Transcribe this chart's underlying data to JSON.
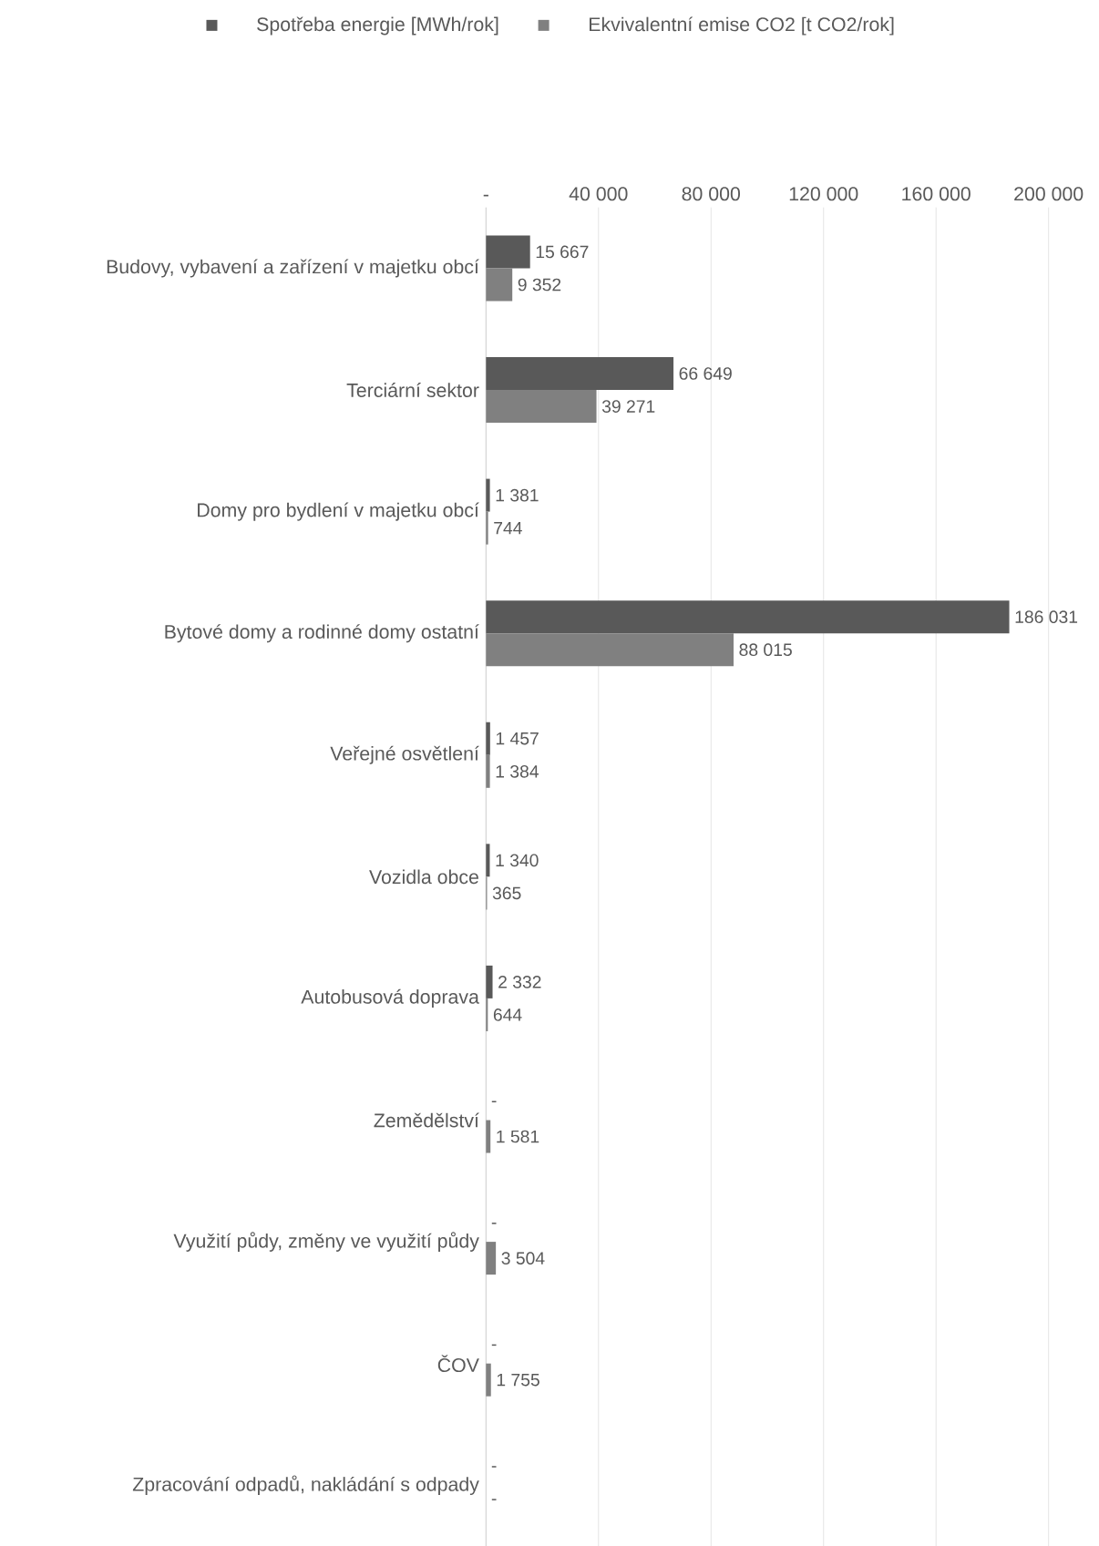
{
  "chart_data": {
    "type": "bar",
    "orientation": "horizontal",
    "legend": "top",
    "grid": "x",
    "categories": [
      "Budovy, vybavení a zařízení v majetku obcí",
      "Terciární sektor",
      "Domy pro bydlení v majetku obcí",
      "Bytové domy a rodinné domy ostatní",
      "Veřejné osvětlení",
      "Vozidla obce",
      "Autobusová doprava",
      "Zemědělství",
      "Využití půdy, změny ve využití půdy",
      "ČOV",
      "Zpracování odpadů, nakládání s odpady"
    ],
    "xlim": [
      0,
      200000
    ],
    "xticks": [
      {
        "value": 0,
        "label": "-"
      },
      {
        "value": 40000,
        "label": "40 000"
      },
      {
        "value": 80000,
        "label": "80 000"
      },
      {
        "value": 120000,
        "label": "120 000"
      },
      {
        "value": 160000,
        "label": "160 000"
      },
      {
        "value": 200000,
        "label": "200 000"
      }
    ],
    "series": [
      {
        "name": "Spotřeba energie [MWh/rok]",
        "color": "#595959",
        "values": [
          15667,
          66649,
          1381,
          186031,
          1457,
          1340,
          2332,
          null,
          null,
          null,
          null
        ],
        "value_labels": [
          "15 667",
          "66 649",
          "1 381",
          "186 031",
          "1 457",
          "1 340",
          "2 332",
          "-",
          "-",
          "-",
          "-"
        ]
      },
      {
        "name": "Ekvivalentní emise CO2 [t CO2/rok]",
        "color": "#808080",
        "values": [
          9352,
          39271,
          744,
          88015,
          1384,
          365,
          644,
          1581,
          3504,
          1755,
          0
        ],
        "value_labels": [
          "9 352",
          "39 271",
          "744",
          "88 015",
          "1 384",
          "365",
          "644",
          "1 581",
          "3 504",
          "1 755",
          "-"
        ]
      }
    ]
  }
}
